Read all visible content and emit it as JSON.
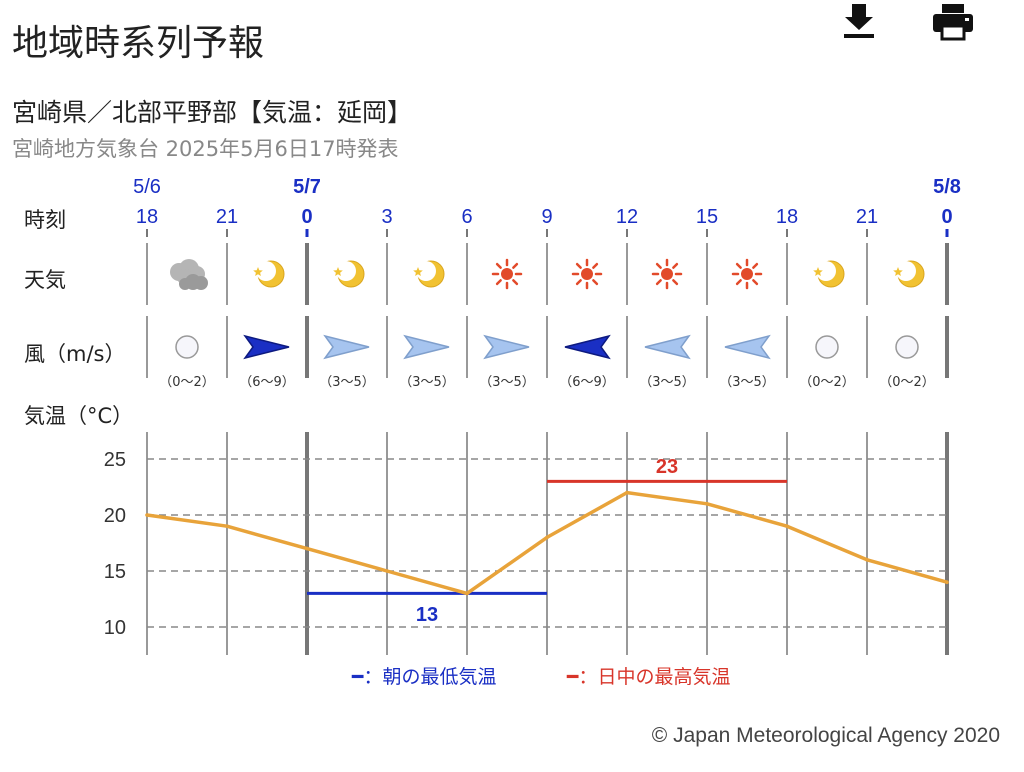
{
  "header": {
    "title": "地域時系列予報",
    "download_icon": "download-icon",
    "print_icon": "print-icon"
  },
  "region": {
    "name": "宮崎県／北部平野部【気温：延岡】",
    "issued": "宮崎地方気象台 2025年5月6日17時発表"
  },
  "row_labels": {
    "time": "時刻",
    "weather": "天気",
    "wind": "風（m/s）",
    "temperature": "気温（°C）"
  },
  "legend": {
    "min_label": "━：朝の最低気温",
    "max_label": "━：日中の最高気温"
  },
  "copyright": "© Japan Meteorological Agency 2020",
  "colors": {
    "day_boundary": "#1a2fc4",
    "temperature_line": "#e8a33a",
    "min_temp": "#1a2fc4",
    "max_temp": "#d8352a",
    "grid": "#888888"
  },
  "chart_data": {
    "type": "line",
    "dates": [
      {
        "index": 0,
        "label": "5/6"
      },
      {
        "index": 2,
        "label": "5/7"
      },
      {
        "index": 10,
        "label": "5/8"
      }
    ],
    "times": [
      "18",
      "21",
      "0",
      "3",
      "6",
      "9",
      "12",
      "15",
      "18",
      "21",
      "0"
    ],
    "day_boundaries": [
      2,
      10
    ],
    "weather": [
      "cloudy",
      "night-clear",
      "night-clear",
      "night-clear",
      "sunny",
      "sunny",
      "sunny",
      "sunny",
      "night-clear",
      "night-clear"
    ],
    "wind": [
      {
        "direction": "calm",
        "speed": "（0〜2）"
      },
      {
        "direction": "east",
        "strength": "strong",
        "speed": "（6〜9）"
      },
      {
        "direction": "east",
        "strength": "weak",
        "speed": "（3〜5）"
      },
      {
        "direction": "east",
        "strength": "weak",
        "speed": "（3〜5）"
      },
      {
        "direction": "east",
        "strength": "weak",
        "speed": "（3〜5）"
      },
      {
        "direction": "west",
        "strength": "strong",
        "speed": "（6〜9）"
      },
      {
        "direction": "west",
        "strength": "weak",
        "speed": "（3〜5）"
      },
      {
        "direction": "west",
        "strength": "weak",
        "speed": "（3〜5）"
      },
      {
        "direction": "calm",
        "speed": "（0〜2）"
      },
      {
        "direction": "calm",
        "speed": "（0〜2）"
      }
    ],
    "temperature": {
      "values": [
        20,
        19,
        17,
        15,
        13,
        18,
        22,
        21,
        19,
        16,
        14
      ],
      "ylim": [
        8,
        27
      ],
      "yticks": [
        25,
        20,
        15,
        10
      ],
      "grid": true
    },
    "min_temp": {
      "value": 13,
      "label": "13",
      "start_index": 2,
      "end_index": 5
    },
    "max_temp": {
      "value": 23,
      "label": "23",
      "start_index": 5,
      "end_index": 8
    }
  }
}
